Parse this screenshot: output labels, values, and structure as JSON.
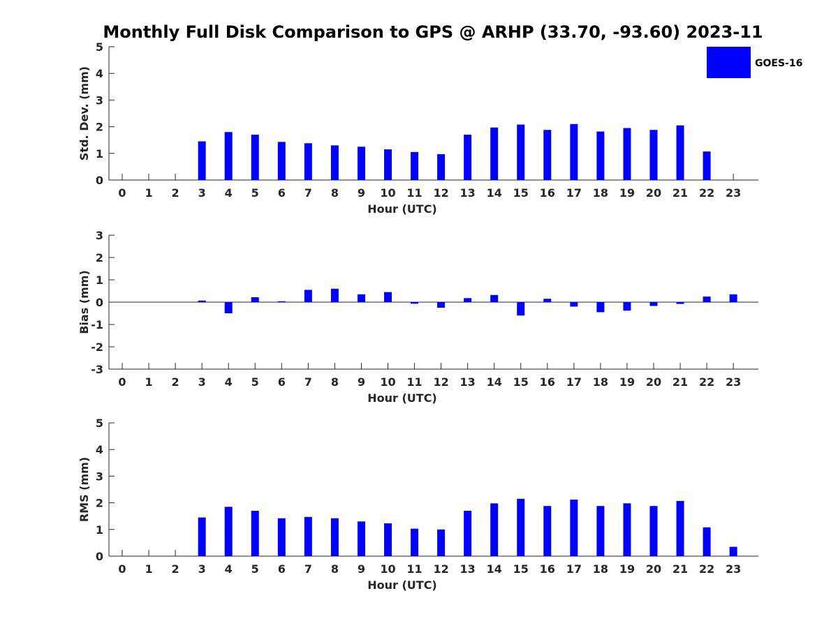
{
  "chart_data": {
    "title": "Monthly Full Disk Comparison to GPS @ ARHP (33.70, -93.60) 2023-11",
    "legend": {
      "label": "GOES-16",
      "color": "#0000ff",
      "placement": "top-right"
    },
    "panels": [
      {
        "type": "bar",
        "ylabel": "Std. Dev. (mm)",
        "xlabel": "Hour (UTC)",
        "ylim": [
          0,
          5
        ],
        "yticks": [
          "0",
          "1",
          "2",
          "3",
          "4",
          "5"
        ],
        "categories": [
          "0",
          "1",
          "2",
          "3",
          "4",
          "5",
          "6",
          "7",
          "8",
          "9",
          "10",
          "11",
          "12",
          "13",
          "14",
          "15",
          "16",
          "17",
          "18",
          "19",
          "20",
          "21",
          "22",
          "23"
        ],
        "series": [
          {
            "name": "GOES-16",
            "values": [
              null,
              null,
              null,
              1.45,
              1.8,
              1.7,
              1.43,
              1.38,
              1.3,
              1.25,
              1.15,
              1.05,
              0.97,
              1.7,
              1.97,
              2.08,
              1.88,
              2.1,
              1.82,
              1.95,
              1.88,
              2.05,
              1.07,
              null
            ]
          }
        ]
      },
      {
        "type": "bar",
        "ylabel": "Bias (mm)",
        "xlabel": "Hour (UTC)",
        "ylim": [
          -3,
          3
        ],
        "yticks": [
          "-3",
          "-2",
          "-1",
          "0",
          "1",
          "2",
          "3"
        ],
        "categories": [
          "0",
          "1",
          "2",
          "3",
          "4",
          "5",
          "6",
          "7",
          "8",
          "9",
          "10",
          "11",
          "12",
          "13",
          "14",
          "15",
          "16",
          "17",
          "18",
          "19",
          "20",
          "21",
          "22",
          "23"
        ],
        "series": [
          {
            "name": "GOES-16",
            "values": [
              null,
              null,
              null,
              0.07,
              -0.5,
              0.22,
              0.04,
              0.55,
              0.6,
              0.35,
              0.45,
              -0.07,
              -0.25,
              0.18,
              0.32,
              -0.6,
              0.15,
              -0.2,
              -0.45,
              -0.38,
              -0.17,
              -0.08,
              0.25,
              0.35
            ]
          }
        ]
      },
      {
        "type": "bar",
        "ylabel": "RMS (mm)",
        "xlabel": "Hour (UTC)",
        "ylim": [
          0,
          5
        ],
        "yticks": [
          "0",
          "1",
          "2",
          "3",
          "4",
          "5"
        ],
        "categories": [
          "0",
          "1",
          "2",
          "3",
          "4",
          "5",
          "6",
          "7",
          "8",
          "9",
          "10",
          "11",
          "12",
          "13",
          "14",
          "15",
          "16",
          "17",
          "18",
          "19",
          "20",
          "21",
          "22",
          "23"
        ],
        "series": [
          {
            "name": "GOES-16",
            "values": [
              null,
              null,
              null,
              1.45,
              1.85,
              1.7,
              1.42,
              1.47,
              1.42,
              1.3,
              1.23,
              1.03,
              1.0,
              1.7,
              1.98,
              2.15,
              1.88,
              2.12,
              1.88,
              1.98,
              1.88,
              2.07,
              1.08,
              0.35
            ]
          }
        ]
      }
    ]
  }
}
